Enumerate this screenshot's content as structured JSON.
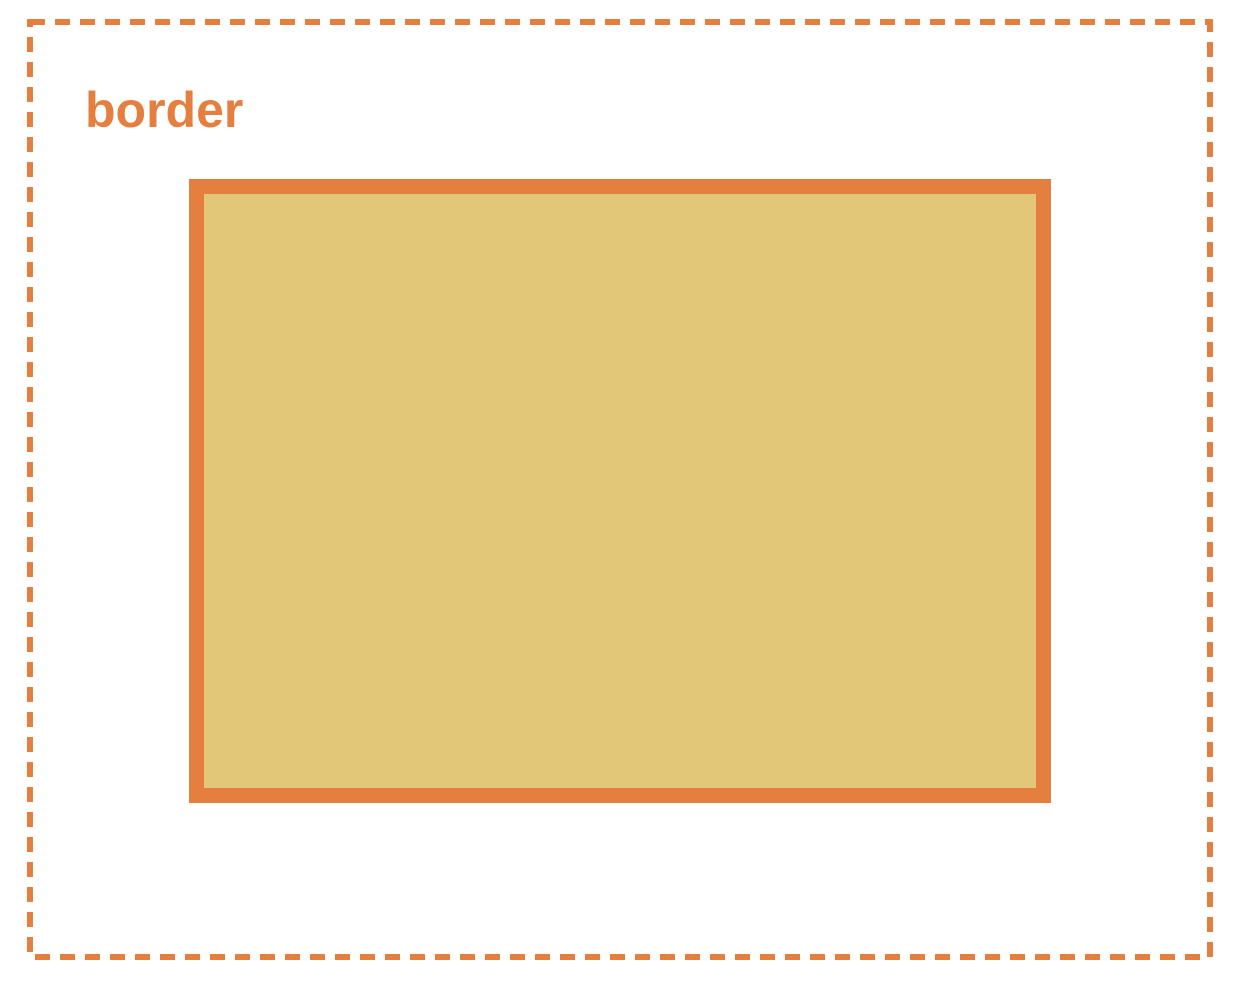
{
  "diagram": {
    "label": "border",
    "colors": {
      "border": "#E47F3F",
      "fill": "#E3C778",
      "background": "#FFFFFF"
    }
  }
}
